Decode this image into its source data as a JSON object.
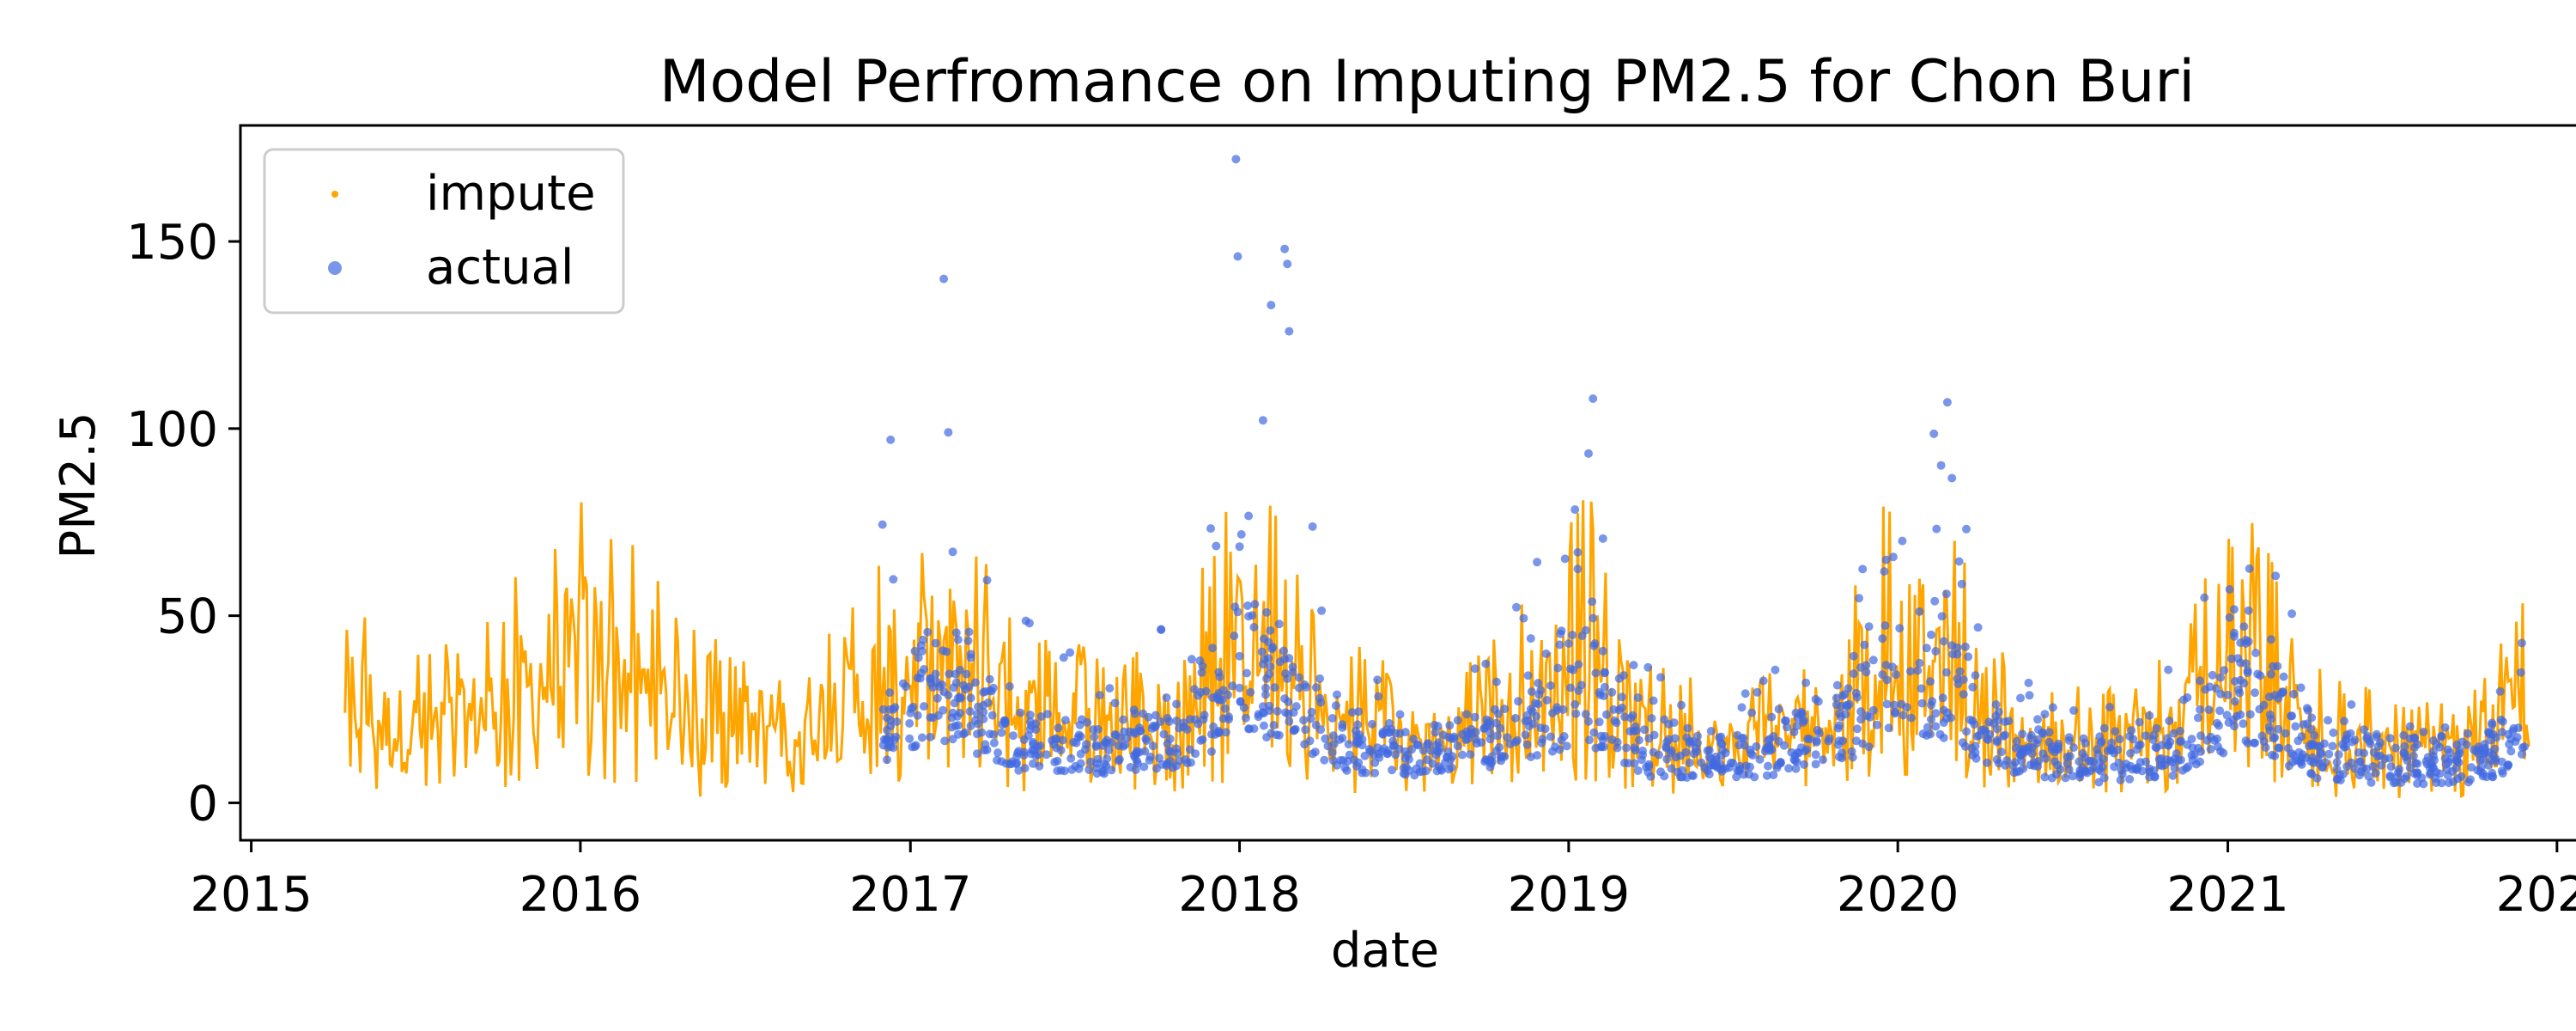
{
  "chart_data": {
    "type": "line",
    "title": "Model Perfromance on Imputing PM2.5 for Chon Buri",
    "xlabel": "date",
    "ylabel": "PM2.5",
    "xlim": [
      "2014-12-20",
      "2022-03-05"
    ],
    "ylim": [
      -10,
      181
    ],
    "x_ticks": [
      "2015",
      "2016",
      "2017",
      "2018",
      "2019",
      "2020",
      "2021",
      "2022"
    ],
    "y_ticks": [
      0,
      50,
      100,
      150
    ],
    "grid": false,
    "legend": {
      "position": "top-left",
      "entries": [
        "impute",
        "actual"
      ]
    },
    "series": [
      {
        "name": "impute",
        "color": "#FFA500",
        "style": "line",
        "x": [
          "2015-04-15",
          "2015-06-01",
          "2015-08-01",
          "2015-10-01",
          "2015-12-01",
          "2016-01-15",
          "2016-03-01",
          "2016-05-01",
          "2016-07-01",
          "2016-09-01",
          "2016-11-01",
          "2016-12-01",
          "2017-02-15",
          "2017-06-01",
          "2017-09-01",
          "2017-11-01",
          "2018-01-15",
          "2018-04-01",
          "2018-07-01",
          "2018-09-01",
          "2018-11-15",
          "2019-01-20",
          "2019-04-01",
          "2019-07-01",
          "2019-10-01",
          "2019-12-01",
          "2020-02-15",
          "2020-05-01",
          "2020-08-01",
          "2020-11-01",
          "2021-01-20",
          "2021-04-01",
          "2021-07-01",
          "2021-10-01",
          "2021-12-01"
        ],
        "values": [
          20,
          14,
          16,
          22,
          30,
          35,
          26,
          15,
          14,
          16,
          18,
          22,
          32,
          15,
          14,
          18,
          35,
          18,
          14,
          16,
          22,
          40,
          15,
          13,
          18,
          32,
          36,
          16,
          12,
          16,
          35,
          16,
          10,
          10,
          18
        ],
        "upper": [
          65,
          45,
          42,
          55,
          75,
          90,
          68,
          48,
          45,
          48,
          55,
          70,
          82,
          45,
          40,
          55,
          95,
          50,
          35,
          38,
          55,
          85,
          40,
          32,
          45,
          80,
          85,
          38,
          30,
          42,
          85,
          40,
          28,
          30,
          58
        ],
        "lower": [
          5,
          1,
          2,
          3,
          5,
          6,
          4,
          1,
          2,
          3,
          4,
          4,
          6,
          2,
          2,
          3,
          6,
          3,
          2,
          3,
          4,
          6,
          2,
          1,
          3,
          6,
          6,
          2,
          1,
          2,
          5,
          1,
          1,
          1,
          2
        ]
      },
      {
        "name": "actual",
        "color": "#4169E1",
        "style": "scatter",
        "x": [
          "2016-12-01",
          "2017-01-01",
          "2017-02-15",
          "2017-05-01",
          "2017-08-01",
          "2017-11-01",
          "2018-01-01",
          "2018-02-15",
          "2018-05-01",
          "2018-08-01",
          "2018-11-01",
          "2019-01-20",
          "2019-04-01",
          "2019-07-01",
          "2019-10-01",
          "2019-12-15",
          "2020-02-20",
          "2020-05-01",
          "2020-08-01",
          "2020-11-01",
          "2021-01-25",
          "2021-04-01",
          "2021-07-01",
          "2021-10-01",
          "2021-12-01"
        ],
        "values": [
          22,
          30,
          35,
          18,
          16,
          20,
          40,
          36,
          18,
          14,
          22,
          38,
          16,
          13,
          20,
          34,
          40,
          16,
          12,
          16,
          38,
          17,
          12,
          12,
          20
        ],
        "upper": [
          95,
          70,
          100,
          50,
          35,
          55,
          100,
          115,
          45,
          30,
          55,
          100,
          35,
          28,
          45,
          80,
          105,
          38,
          28,
          38,
          90,
          38,
          25,
          30,
          45
        ],
        "lower": [
          6,
          8,
          8,
          4,
          4,
          5,
          8,
          8,
          4,
          4,
          5,
          6,
          3,
          3,
          4,
          6,
          6,
          3,
          2,
          3,
          6,
          2,
          2,
          2,
          4
        ],
        "outliers": [
          {
            "x": "2017-02-07",
            "y": 140
          },
          {
            "x": "2017-12-28",
            "y": 172
          },
          {
            "x": "2017-12-30",
            "y": 146
          },
          {
            "x": "2018-02-20",
            "y": 148
          },
          {
            "x": "2018-02-23",
            "y": 144
          },
          {
            "x": "2018-02-05",
            "y": 133
          },
          {
            "x": "2018-02-25",
            "y": 126
          },
          {
            "x": "2019-01-28",
            "y": 108
          },
          {
            "x": "2020-02-25",
            "y": 107
          },
          {
            "x": "2016-12-10",
            "y": 97
          },
          {
            "x": "2017-02-12",
            "y": 99
          }
        ]
      }
    ]
  }
}
